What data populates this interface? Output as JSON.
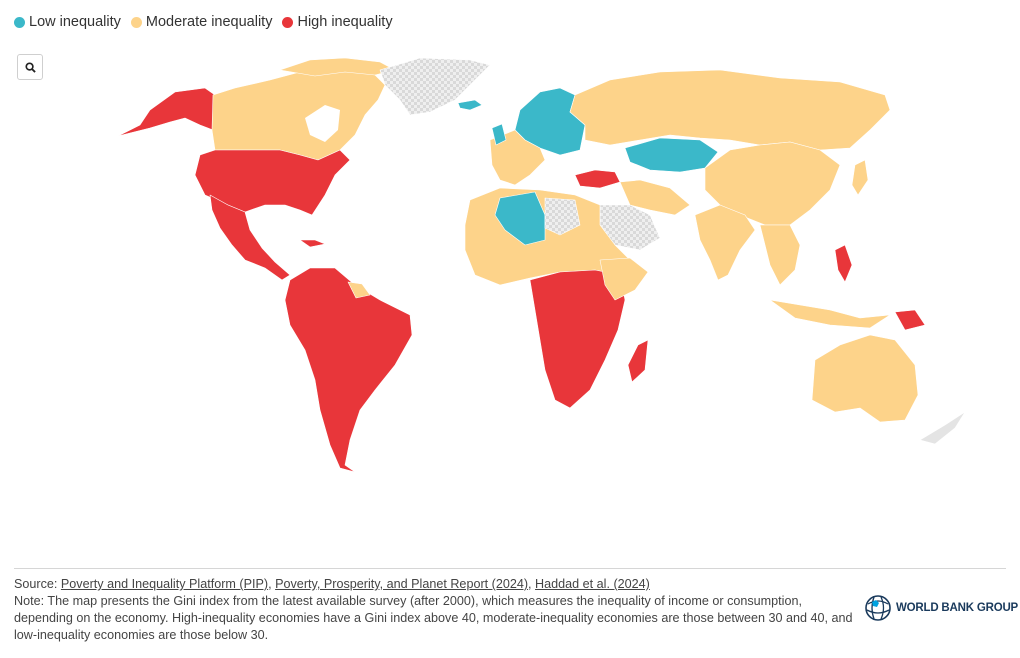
{
  "legend": {
    "items": [
      {
        "label": "Low inequality",
        "color": "#3bb8c9"
      },
      {
        "label": "Moderate inequality",
        "color": "#fdd38a"
      },
      {
        "label": "High inequality",
        "color": "#e8363a"
      }
    ]
  },
  "controls": {
    "zoom_icon": "magnifier-icon"
  },
  "colors": {
    "low": "#3bb8c9",
    "moderate": "#fdd38a",
    "high": "#e8363a",
    "no_data": "#e4e4e4"
  },
  "map_regions": [
    {
      "name": "North America",
      "category": "high"
    },
    {
      "name": "Central America",
      "category": "high"
    },
    {
      "name": "South America",
      "category": "high"
    },
    {
      "name": "Southern Africa",
      "category": "high"
    },
    {
      "name": "Canada",
      "category": "moderate"
    },
    {
      "name": "Russia",
      "category": "moderate"
    },
    {
      "name": "China",
      "category": "moderate"
    },
    {
      "name": "India",
      "category": "moderate"
    },
    {
      "name": "Australia",
      "category": "moderate"
    },
    {
      "name": "Northern Europe",
      "category": "low"
    },
    {
      "name": "Kazakhstan",
      "category": "low"
    },
    {
      "name": "Algeria",
      "category": "low"
    },
    {
      "name": "Turkiye",
      "category": "high"
    },
    {
      "name": "Greenland",
      "category": "no_data"
    },
    {
      "name": "Saudi Arabia",
      "category": "no_data"
    }
  ],
  "footer": {
    "source_label": "Source: ",
    "sources": [
      "Poverty and Inequality Platform (PIP)",
      "Poverty, Prosperity, and Planet Report (2024)",
      "Haddad et al. (2024)"
    ],
    "separator": ", ",
    "note": "Note: The map presents the Gini index from the latest available survey (after 2000), which measures the inequality of income or consumption, depending on the economy. High-inequality economies have a Gini index above 40, moderate-inequality economies are those between 30 and 40, and low-inequality economies are those below 30."
  },
  "logo": {
    "text": "WORLD BANK GROUP",
    "icon": "globe-icon"
  }
}
